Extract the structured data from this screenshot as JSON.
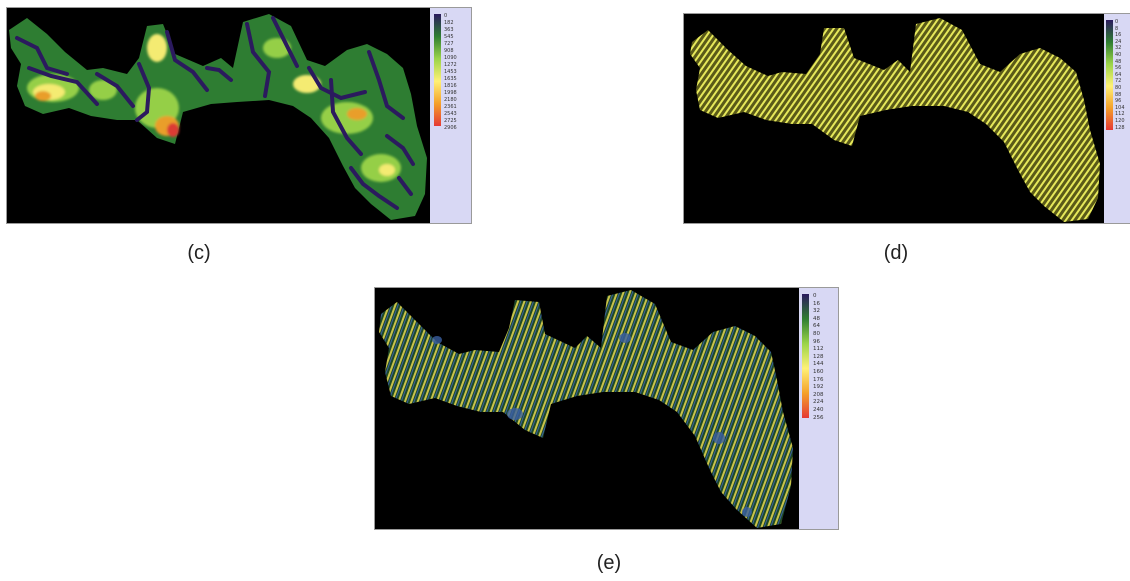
{
  "panels": [
    {
      "id": "c",
      "caption": "(c)",
      "legend_ticks": [
        "0",
        "182",
        "363",
        "545",
        "727",
        "908",
        "1090",
        "1272",
        "1453",
        "1635",
        "1816",
        "1998",
        "2180",
        "2361",
        "2543",
        "2725",
        "2906"
      ]
    },
    {
      "id": "d",
      "caption": "(d)",
      "legend_ticks": [
        "0",
        "8",
        "16",
        "24",
        "32",
        "40",
        "48",
        "56",
        "64",
        "72",
        "80",
        "88",
        "96",
        "104",
        "112",
        "120",
        "128"
      ]
    },
    {
      "id": "e",
      "caption": "(e)",
      "legend_ticks": [
        "0",
        "16",
        "32",
        "48",
        "64",
        "80",
        "96",
        "112",
        "128",
        "144",
        "160",
        "176",
        "192",
        "208",
        "224",
        "240",
        "256"
      ]
    }
  ],
  "colors": {
    "background": "#000000",
    "legend_bg": "#d8d8f4",
    "ramp": [
      "#2b1a5e",
      "#2e7d32",
      "#9bd449",
      "#fff176",
      "#f4a02a",
      "#e53935"
    ]
  }
}
